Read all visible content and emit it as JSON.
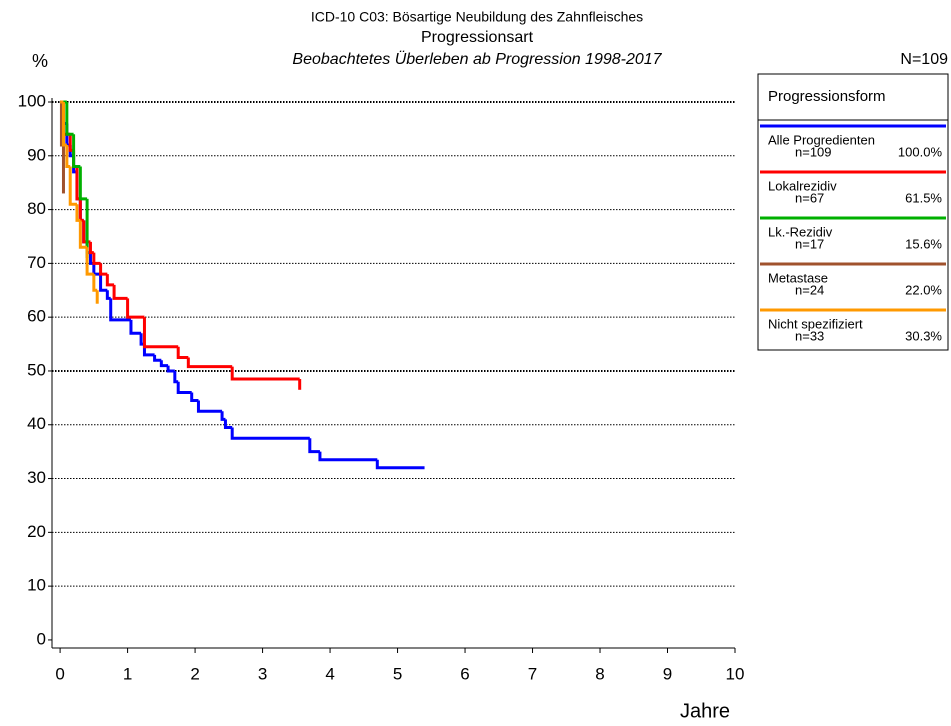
{
  "chart_data": {
    "type": "step",
    "title": "ICD-10 C03: Bösartige Neubildung des Zahnfleisches",
    "subtitle": "Progressionsart",
    "subtitle2": "Beobachtetes Überleben ab Progression 1998-2017",
    "y_label": "%",
    "x_label": "Jahre",
    "n_total": "N=109",
    "legend_title": "Progressionsform",
    "xlim": [
      -0.12,
      10
    ],
    "ylim": [
      -1.5,
      100
    ],
    "xticks": [
      0,
      1,
      2,
      3,
      4,
      5,
      6,
      7,
      8,
      9,
      10
    ],
    "yticks": [
      0,
      10,
      20,
      30,
      40,
      50,
      60,
      70,
      80,
      90,
      100
    ],
    "grid": true,
    "series": [
      {
        "name": "Alle Progredienten",
        "n_label": "n=109",
        "share_label": "100.0%",
        "color": "#0000ff",
        "x": [
          0,
          0.05,
          0.1,
          0.15,
          0.2,
          0.25,
          0.3,
          0.35,
          0.4,
          0.45,
          0.5,
          0.6,
          0.7,
          0.75,
          1.05,
          1.2,
          1.25,
          1.4,
          1.5,
          1.6,
          1.7,
          1.75,
          1.95,
          2.05,
          2.4,
          2.45,
          2.55,
          3.7,
          3.85,
          4.7,
          5.4
        ],
        "values": [
          100,
          96,
          92,
          90,
          87,
          82,
          78,
          74,
          72,
          70,
          68,
          65,
          63.5,
          59.5,
          57,
          55,
          53,
          52,
          51,
          50,
          48,
          46,
          44.5,
          42.5,
          41,
          39.5,
          37.5,
          35,
          33.5,
          32,
          32
        ]
      },
      {
        "name": "Lokalrezidiv",
        "n_label": "n=67",
        "share_label": "61.5%",
        "color": "#ff0000",
        "x": [
          0,
          0.05,
          0.15,
          0.2,
          0.25,
          0.3,
          0.35,
          0.45,
          0.5,
          0.6,
          0.7,
          0.8,
          1.0,
          1.25,
          1.75,
          1.9,
          2.55,
          3.55
        ],
        "values": [
          100,
          94,
          91,
          88,
          82,
          78,
          74,
          72,
          70,
          68,
          66,
          63.5,
          60,
          54.5,
          52.5,
          50.8,
          48.5,
          46.5
        ]
      },
      {
        "name": "Lk.-Rezidiv",
        "n_label": "n=17",
        "share_label": "15.6%",
        "color": "#00b000",
        "x": [
          0,
          0.1,
          0.2,
          0.3,
          0.4
        ],
        "values": [
          100,
          94,
          88,
          82,
          71
        ]
      },
      {
        "name": "Metastase",
        "n_label": "n=24",
        "share_label": "22.0%",
        "color": "#a0522d",
        "x": [
          0,
          0.02,
          0.05
        ],
        "values": [
          100,
          92,
          83
        ]
      },
      {
        "name": "Nicht spezifiziert",
        "n_label": "n=33",
        "share_label": "30.3%",
        "color": "#ff9900",
        "x": [
          0,
          0.05,
          0.1,
          0.15,
          0.25,
          0.3,
          0.4,
          0.5,
          0.55
        ],
        "values": [
          100,
          92,
          88,
          81,
          78,
          73,
          68,
          65,
          62.5
        ]
      }
    ]
  }
}
